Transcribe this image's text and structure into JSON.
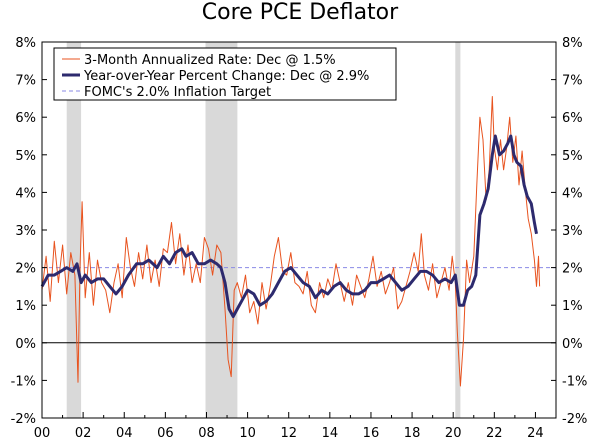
{
  "chart_data": {
    "type": "line",
    "title": "Core PCE Deflator",
    "xlabel": "",
    "ylabel": "",
    "x_range": [
      2000,
      2025
    ],
    "ylim": [
      -2,
      8
    ],
    "y_ticks": [
      -2,
      -1,
      0,
      1,
      2,
      3,
      4,
      5,
      6,
      7,
      8
    ],
    "y_tick_labels": [
      "-2%",
      "-1%",
      "0%",
      "1%",
      "2%",
      "3%",
      "4%",
      "5%",
      "6%",
      "7%",
      "8%"
    ],
    "x_ticks": [
      2000,
      2002,
      2004,
      2006,
      2008,
      2010,
      2012,
      2014,
      2016,
      2018,
      2020,
      2022,
      2024
    ],
    "x_tick_labels": [
      "00",
      "02",
      "04",
      "06",
      "08",
      "10",
      "12",
      "14",
      "16",
      "18",
      "20",
      "22",
      "24"
    ],
    "recessions": [
      [
        2001.2,
        2001.9
      ],
      [
        2007.95,
        2009.5
      ],
      [
        2020.1,
        2020.35
      ]
    ],
    "legend": {
      "position": "top-left",
      "entries": [
        "3-Month Annualized Rate: Dec @ 1.5%",
        "Year-over-Year Percent Change: Dec @ 2.9%",
        "FOMC's 2.0% Inflation Target"
      ]
    },
    "series": [
      {
        "name": "3-Month Annualized Rate: Dec @ 1.5%",
        "color": "#e8531f",
        "style": "thin",
        "points": [
          [
            2000.0,
            1.4
          ],
          [
            2000.2,
            2.3
          ],
          [
            2000.4,
            1.1
          ],
          [
            2000.6,
            2.7
          ],
          [
            2000.8,
            1.6
          ],
          [
            2001.0,
            2.6
          ],
          [
            2001.2,
            1.3
          ],
          [
            2001.4,
            2.4
          ],
          [
            2001.6,
            1.8
          ],
          [
            2001.75,
            -1.05
          ],
          [
            2001.85,
            2.0
          ],
          [
            2001.95,
            3.75
          ],
          [
            2002.1,
            1.2
          ],
          [
            2002.3,
            2.4
          ],
          [
            2002.5,
            1.0
          ],
          [
            2002.7,
            2.2
          ],
          [
            2002.9,
            1.6
          ],
          [
            2003.1,
            1.4
          ],
          [
            2003.3,
            0.8
          ],
          [
            2003.5,
            1.6
          ],
          [
            2003.7,
            2.1
          ],
          [
            2003.9,
            1.2
          ],
          [
            2004.1,
            2.8
          ],
          [
            2004.3,
            2.0
          ],
          [
            2004.5,
            1.5
          ],
          [
            2004.7,
            2.4
          ],
          [
            2004.9,
            1.7
          ],
          [
            2005.1,
            2.6
          ],
          [
            2005.3,
            1.6
          ],
          [
            2005.5,
            2.2
          ],
          [
            2005.7,
            1.5
          ],
          [
            2005.9,
            2.5
          ],
          [
            2006.1,
            2.4
          ],
          [
            2006.3,
            3.2
          ],
          [
            2006.5,
            2.1
          ],
          [
            2006.7,
            2.9
          ],
          [
            2006.9,
            1.8
          ],
          [
            2007.1,
            2.6
          ],
          [
            2007.3,
            1.6
          ],
          [
            2007.5,
            2.1
          ],
          [
            2007.7,
            1.6
          ],
          [
            2007.9,
            2.8
          ],
          [
            2008.1,
            2.5
          ],
          [
            2008.3,
            1.8
          ],
          [
            2008.5,
            2.6
          ],
          [
            2008.7,
            2.4
          ],
          [
            2008.9,
            0.9
          ],
          [
            2009.05,
            -0.45
          ],
          [
            2009.2,
            -0.9
          ],
          [
            2009.35,
            1.4
          ],
          [
            2009.5,
            1.6
          ],
          [
            2009.7,
            1.2
          ],
          [
            2009.9,
            1.8
          ],
          [
            2010.1,
            0.8
          ],
          [
            2010.3,
            1.1
          ],
          [
            2010.5,
            0.5
          ],
          [
            2010.7,
            1.6
          ],
          [
            2010.9,
            0.9
          ],
          [
            2011.1,
            1.5
          ],
          [
            2011.3,
            2.3
          ],
          [
            2011.5,
            2.8
          ],
          [
            2011.7,
            1.9
          ],
          [
            2011.9,
            1.8
          ],
          [
            2012.1,
            2.4
          ],
          [
            2012.3,
            1.6
          ],
          [
            2012.5,
            1.5
          ],
          [
            2012.7,
            1.3
          ],
          [
            2012.9,
            1.9
          ],
          [
            2013.1,
            1.0
          ],
          [
            2013.3,
            0.8
          ],
          [
            2013.5,
            1.6
          ],
          [
            2013.7,
            1.2
          ],
          [
            2013.9,
            1.7
          ],
          [
            2014.1,
            1.4
          ],
          [
            2014.3,
            2.1
          ],
          [
            2014.5,
            1.6
          ],
          [
            2014.7,
            1.1
          ],
          [
            2014.9,
            1.6
          ],
          [
            2015.1,
            1.0
          ],
          [
            2015.3,
            1.8
          ],
          [
            2015.5,
            1.5
          ],
          [
            2015.7,
            1.2
          ],
          [
            2015.9,
            1.7
          ],
          [
            2016.1,
            2.3
          ],
          [
            2016.3,
            1.5
          ],
          [
            2016.5,
            1.9
          ],
          [
            2016.7,
            1.3
          ],
          [
            2016.9,
            1.6
          ],
          [
            2017.1,
            2.0
          ],
          [
            2017.3,
            0.9
          ],
          [
            2017.5,
            1.1
          ],
          [
            2017.7,
            1.5
          ],
          [
            2017.9,
            1.9
          ],
          [
            2018.1,
            2.4
          ],
          [
            2018.3,
            1.9
          ],
          [
            2018.45,
            2.9
          ],
          [
            2018.6,
            1.8
          ],
          [
            2018.8,
            1.4
          ],
          [
            2019.0,
            2.1
          ],
          [
            2019.2,
            1.2
          ],
          [
            2019.4,
            1.6
          ],
          [
            2019.6,
            2.0
          ],
          [
            2019.8,
            1.4
          ],
          [
            2019.95,
            2.3
          ],
          [
            2020.1,
            1.6
          ],
          [
            2020.2,
            0.3
          ],
          [
            2020.35,
            -1.15
          ],
          [
            2020.5,
            0.1
          ],
          [
            2020.65,
            2.2
          ],
          [
            2020.8,
            1.6
          ],
          [
            2021.0,
            2.3
          ],
          [
            2021.15,
            4.2
          ],
          [
            2021.3,
            6.0
          ],
          [
            2021.45,
            5.4
          ],
          [
            2021.6,
            3.8
          ],
          [
            2021.75,
            4.6
          ],
          [
            2021.9,
            6.55
          ],
          [
            2022.0,
            5.2
          ],
          [
            2022.15,
            4.6
          ],
          [
            2022.3,
            5.4
          ],
          [
            2022.45,
            4.6
          ],
          [
            2022.6,
            5.2
          ],
          [
            2022.75,
            6.0
          ],
          [
            2022.9,
            4.8
          ],
          [
            2023.05,
            5.5
          ],
          [
            2023.2,
            4.2
          ],
          [
            2023.35,
            5.1
          ],
          [
            2023.5,
            4.1
          ],
          [
            2023.65,
            3.3
          ],
          [
            2023.8,
            2.9
          ],
          [
            2023.95,
            2.2
          ],
          [
            2024.05,
            1.5
          ],
          [
            2024.15,
            2.3
          ],
          [
            2024.2,
            1.5
          ]
        ]
      },
      {
        "name": "Year-over-Year Percent Change: Dec @ 2.9%",
        "color": "#2d2a6e",
        "style": "thick",
        "points": [
          [
            2000.0,
            1.5
          ],
          [
            2000.3,
            1.8
          ],
          [
            2000.6,
            1.8
          ],
          [
            2000.9,
            1.9
          ],
          [
            2001.2,
            2.0
          ],
          [
            2001.5,
            1.9
          ],
          [
            2001.7,
            2.1
          ],
          [
            2001.9,
            1.6
          ],
          [
            2002.1,
            1.8
          ],
          [
            2002.4,
            1.6
          ],
          [
            2002.7,
            1.7
          ],
          [
            2003.0,
            1.7
          ],
          [
            2003.3,
            1.5
          ],
          [
            2003.6,
            1.3
          ],
          [
            2003.9,
            1.5
          ],
          [
            2004.2,
            1.8
          ],
          [
            2004.6,
            2.1
          ],
          [
            2004.9,
            2.1
          ],
          [
            2005.2,
            2.2
          ],
          [
            2005.6,
            2.0
          ],
          [
            2005.9,
            2.3
          ],
          [
            2006.2,
            2.1
          ],
          [
            2006.5,
            2.4
          ],
          [
            2006.8,
            2.5
          ],
          [
            2007.0,
            2.3
          ],
          [
            2007.3,
            2.4
          ],
          [
            2007.6,
            2.1
          ],
          [
            2007.9,
            2.1
          ],
          [
            2008.2,
            2.2
          ],
          [
            2008.5,
            2.1
          ],
          [
            2008.7,
            2.0
          ],
          [
            2008.9,
            1.6
          ],
          [
            2009.1,
            0.9
          ],
          [
            2009.3,
            0.7
          ],
          [
            2009.5,
            0.9
          ],
          [
            2009.8,
            1.2
          ],
          [
            2010.0,
            1.4
          ],
          [
            2010.3,
            1.3
          ],
          [
            2010.6,
            1.0
          ],
          [
            2010.9,
            1.1
          ],
          [
            2011.2,
            1.3
          ],
          [
            2011.5,
            1.6
          ],
          [
            2011.8,
            1.9
          ],
          [
            2012.1,
            2.0
          ],
          [
            2012.4,
            1.8
          ],
          [
            2012.7,
            1.6
          ],
          [
            2013.0,
            1.5
          ],
          [
            2013.3,
            1.2
          ],
          [
            2013.6,
            1.4
          ],
          [
            2013.9,
            1.3
          ],
          [
            2014.2,
            1.5
          ],
          [
            2014.5,
            1.6
          ],
          [
            2014.8,
            1.4
          ],
          [
            2015.1,
            1.3
          ],
          [
            2015.4,
            1.3
          ],
          [
            2015.7,
            1.4
          ],
          [
            2016.0,
            1.6
          ],
          [
            2016.3,
            1.6
          ],
          [
            2016.6,
            1.7
          ],
          [
            2016.9,
            1.8
          ],
          [
            2017.2,
            1.6
          ],
          [
            2017.5,
            1.4
          ],
          [
            2017.8,
            1.5
          ],
          [
            2018.1,
            1.7
          ],
          [
            2018.4,
            1.9
          ],
          [
            2018.7,
            1.9
          ],
          [
            2019.0,
            1.8
          ],
          [
            2019.3,
            1.6
          ],
          [
            2019.6,
            1.7
          ],
          [
            2019.9,
            1.6
          ],
          [
            2020.1,
            1.8
          ],
          [
            2020.3,
            1.0
          ],
          [
            2020.5,
            1.0
          ],
          [
            2020.7,
            1.4
          ],
          [
            2020.9,
            1.5
          ],
          [
            2021.1,
            1.8
          ],
          [
            2021.3,
            3.4
          ],
          [
            2021.5,
            3.7
          ],
          [
            2021.7,
            4.1
          ],
          [
            2021.9,
            5.0
          ],
          [
            2022.05,
            5.5
          ],
          [
            2022.25,
            5.0
          ],
          [
            2022.45,
            5.1
          ],
          [
            2022.65,
            5.3
          ],
          [
            2022.8,
            5.5
          ],
          [
            2022.95,
            5.0
          ],
          [
            2023.1,
            4.8
          ],
          [
            2023.3,
            4.7
          ],
          [
            2023.45,
            4.2
          ],
          [
            2023.6,
            3.9
          ],
          [
            2023.8,
            3.7
          ],
          [
            2023.95,
            3.2
          ],
          [
            2024.05,
            2.9
          ]
        ]
      },
      {
        "name": "FOMC's 2.0% Inflation Target",
        "color": "#8a8ae6",
        "style": "dashed",
        "points": [
          [
            2000.0,
            2.0
          ],
          [
            2025.0,
            2.0
          ]
        ]
      }
    ]
  }
}
